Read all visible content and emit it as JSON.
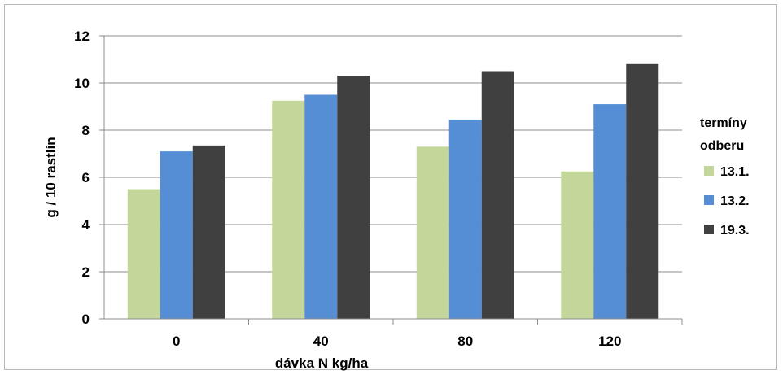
{
  "chart_data": {
    "type": "bar",
    "title": "",
    "xlabel": "dávka N kg/ha",
    "ylabel": "g / 10 rastlín",
    "categories": [
      "0",
      "40",
      "80",
      "120"
    ],
    "ylim": [
      0,
      12
    ],
    "yticks": [
      "0",
      "2",
      "4",
      "6",
      "8",
      "10",
      "12"
    ],
    "grid": true,
    "legend_position": "right",
    "legend_title": [
      "termíny",
      "odberu"
    ],
    "series": [
      {
        "name": "13.1.",
        "color": "#c4d79b",
        "values": [
          5.5,
          9.25,
          7.3,
          6.25
        ]
      },
      {
        "name": "13.2.",
        "color": "#558ed5",
        "values": [
          7.1,
          9.5,
          8.45,
          9.1
        ]
      },
      {
        "name": "19.3.",
        "color": "#404040",
        "values": [
          7.35,
          10.3,
          10.5,
          10.8
        ]
      }
    ]
  }
}
